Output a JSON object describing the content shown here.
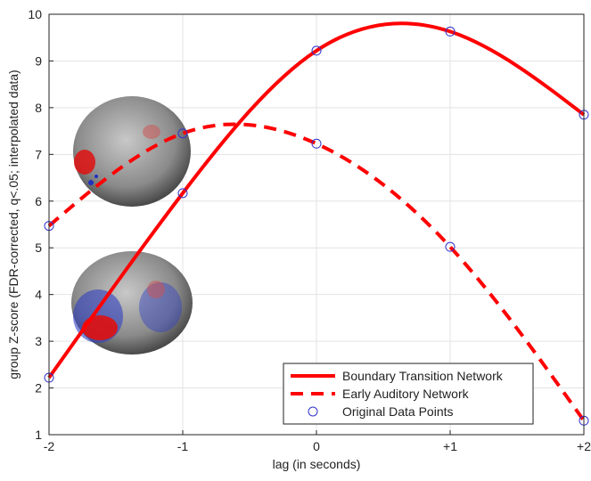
{
  "chart_data": {
    "type": "line",
    "x": [
      -2,
      -1,
      0,
      1,
      2
    ],
    "series": [
      {
        "name": "Boundary Transition Network",
        "color": "#ff0000",
        "dash": "solid",
        "values": [
          2.22,
          6.17,
          9.22,
          9.63,
          7.85
        ]
      },
      {
        "name": "Early Auditory Network",
        "color": "#ff0000",
        "dash": "dashed",
        "values": [
          5.47,
          7.45,
          7.23,
          5.02,
          1.3
        ]
      }
    ],
    "markers": {
      "name": "Original Data Points",
      "color": "#3333cc"
    },
    "xlabel": "lag (in seconds)",
    "ylabel": "group Z-score (FDR-corrected, q<.05; interpolated data)",
    "xlim": [
      -2,
      2
    ],
    "xticks": [
      -2,
      -1,
      0,
      {
        "value": 1,
        "label": "+1"
      },
      {
        "value": 2,
        "label": "+2"
      }
    ],
    "ylim": [
      1,
      10
    ],
    "yticks": [
      1,
      2,
      3,
      4,
      5,
      6,
      7,
      8,
      9,
      10
    ],
    "grid": true,
    "legend": "lower right"
  }
}
